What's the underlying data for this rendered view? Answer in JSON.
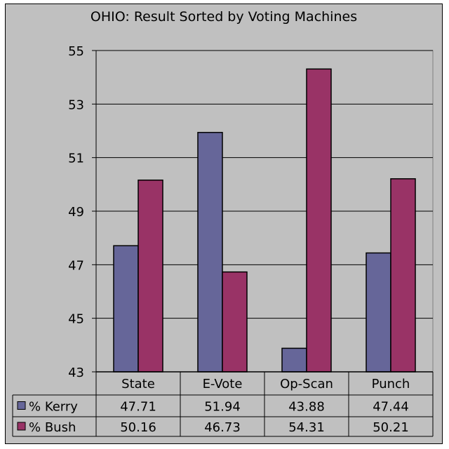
{
  "chart_data": {
    "type": "bar",
    "title": "OHIO:  Result Sorted by Voting Machines",
    "categories": [
      "State",
      "E-Vote",
      "Op-Scan",
      "Punch"
    ],
    "series": [
      {
        "name": "% Kerry",
        "values": [
          47.71,
          51.94,
          43.88,
          47.44
        ],
        "color": "#666699"
      },
      {
        "name": "% Bush",
        "values": [
          50.16,
          46.73,
          54.31,
          50.21
        ],
        "color": "#993366"
      }
    ],
    "value_labels": [
      [
        "47.71",
        "51.94",
        "43.88",
        "47.44"
      ],
      [
        "50.16",
        "46.73",
        "54.31",
        "50.21"
      ]
    ],
    "ylim": [
      43,
      55
    ],
    "yticks": [
      43,
      45,
      47,
      49,
      51,
      53,
      55
    ],
    "grid": true,
    "legend": "data-table-left",
    "plot_background": "#c0c0c0"
  }
}
